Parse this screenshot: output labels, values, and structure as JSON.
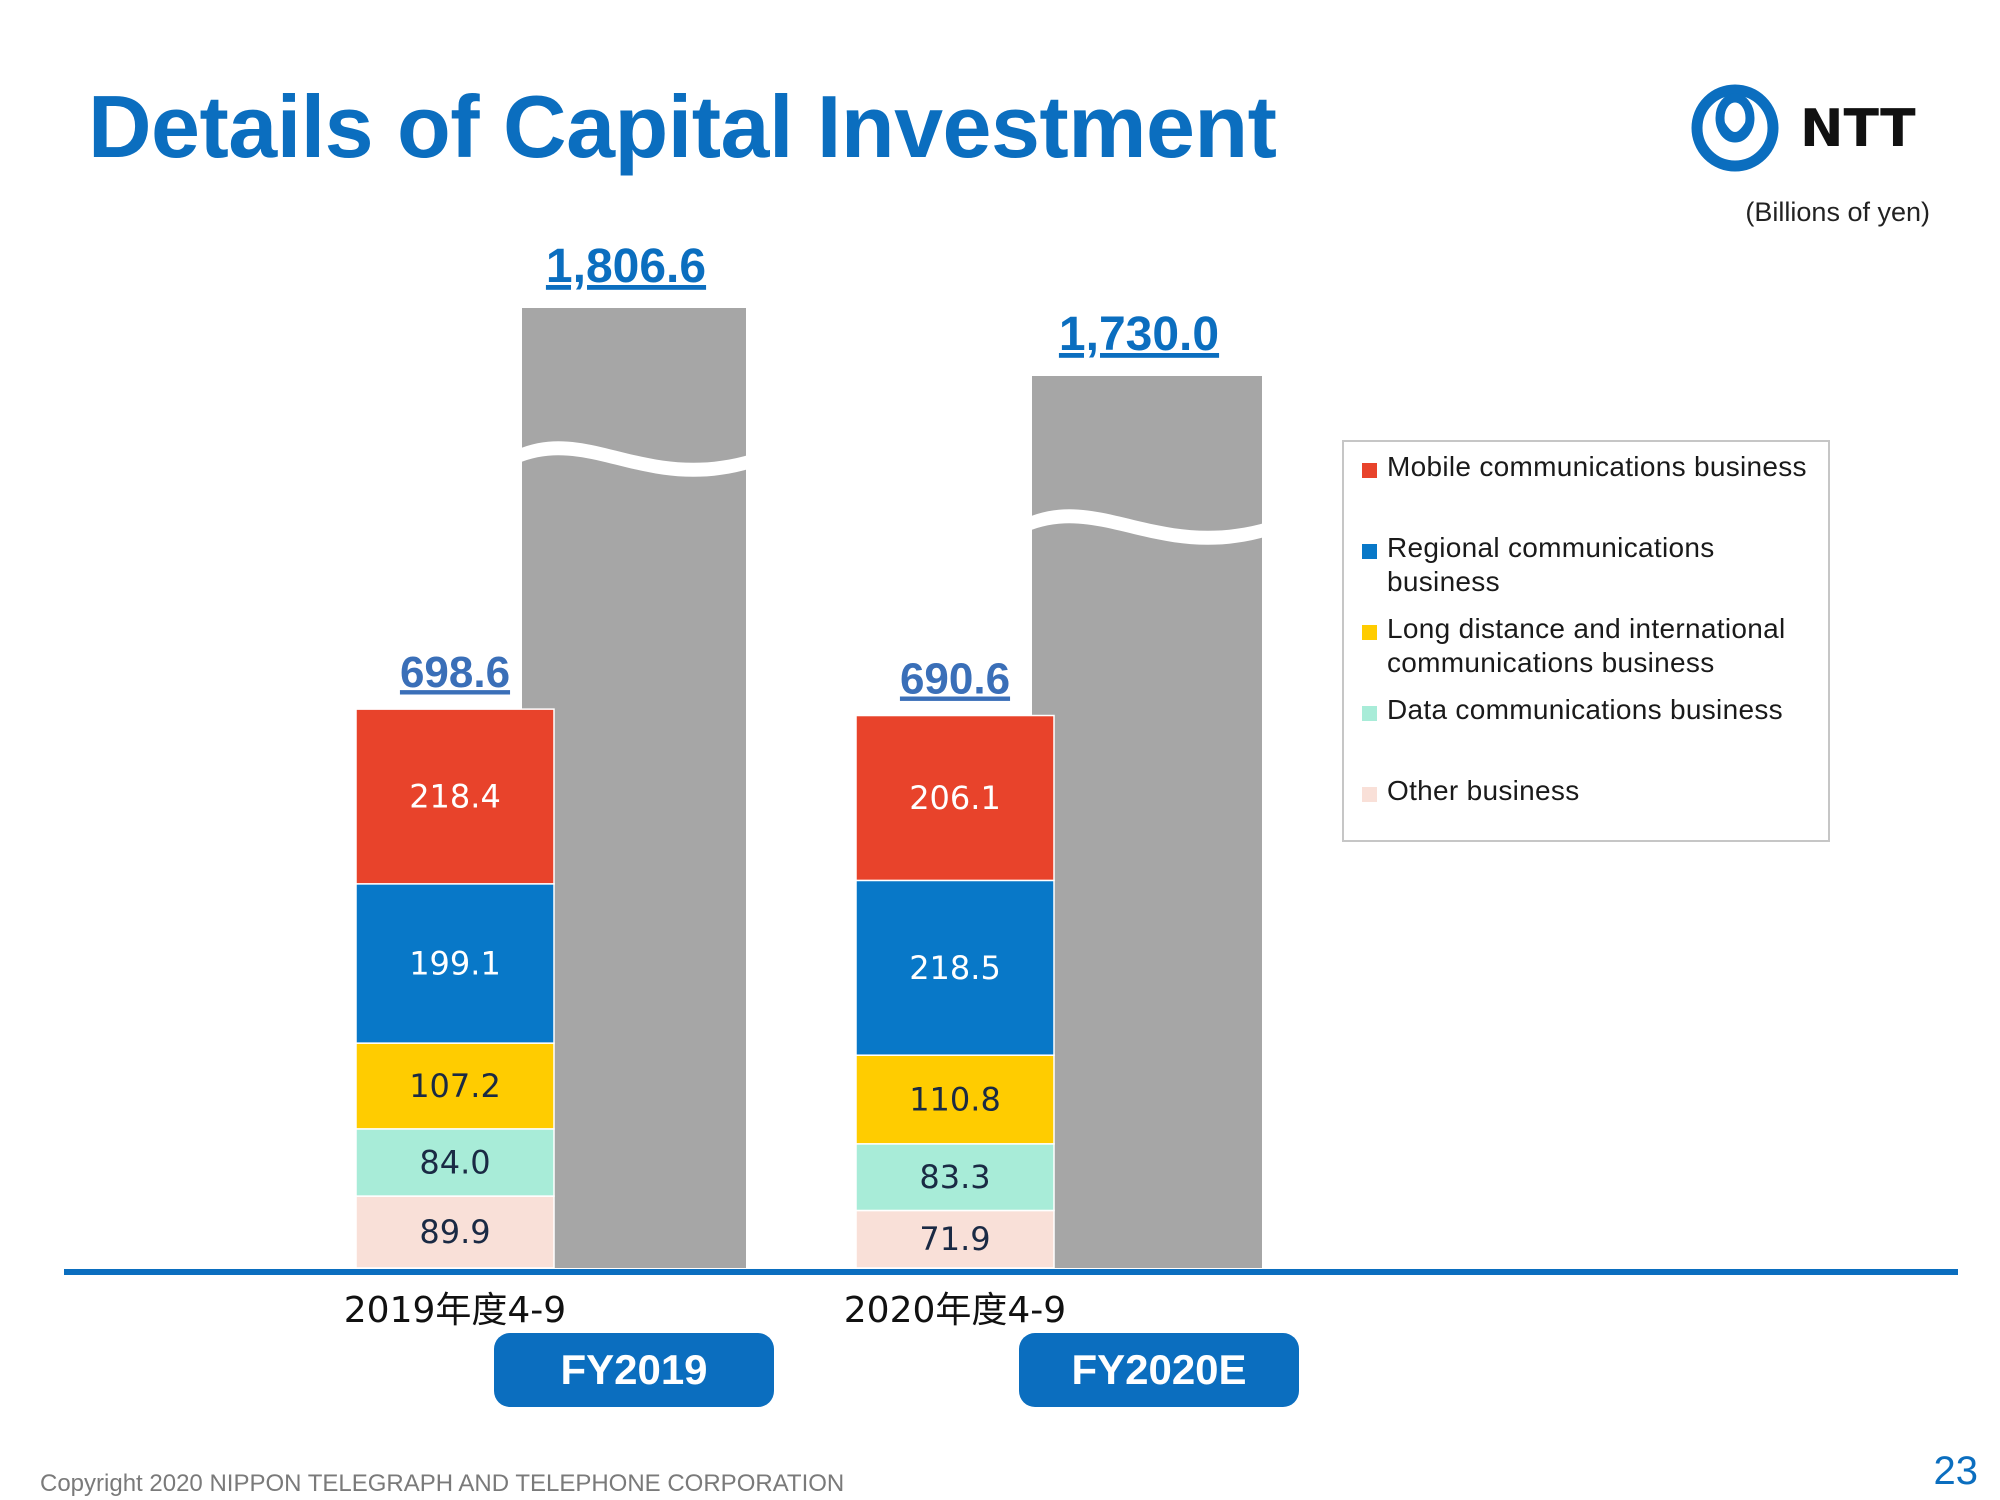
{
  "title": "Details of Capital Investment",
  "logo_text": "NTT",
  "unit_label": "(Billions of yen)",
  "colors": {
    "brand_blue": "#0b6ebf",
    "mobile": "#e8432b",
    "regional": "#0878c8",
    "long_distance": "#ffcc00",
    "data_comm": "#a8ecd8",
    "other": "#f9e0d8",
    "annual_bar": "#a6a6a6"
  },
  "chart_data": {
    "type": "bar",
    "stacked": true,
    "unit": "(Billions of yen)",
    "categories": [
      "2019年度4-9",
      "2020年度4-9"
    ],
    "period_labels": [
      "FY2019",
      "FY2020E"
    ],
    "series": [
      {
        "name": "Other business",
        "color": "#f9e0d8",
        "values": [
          89.9,
          71.9
        ]
      },
      {
        "name": "Data communications business",
        "color": "#a8ecd8",
        "values": [
          84.0,
          83.3
        ]
      },
      {
        "name": "Long distance and international communications business",
        "color": "#ffcc00",
        "values": [
          107.2,
          110.8
        ]
      },
      {
        "name": "Regional communications business",
        "color": "#0878c8",
        "values": [
          199.1,
          218.5
        ]
      },
      {
        "name": "Mobile communications business",
        "color": "#e8432b",
        "values": [
          218.4,
          206.1
        ]
      }
    ],
    "half_year_totals": [
      "698.6",
      "690.6"
    ],
    "full_year_totals": [
      "1,806.6",
      "1,730.0"
    ],
    "full_year_values": [
      1806.6,
      1730.0
    ],
    "axis_break": true,
    "legend_position": "right",
    "grid": false
  },
  "legend": {
    "items": [
      {
        "label": "Mobile communications business",
        "color": "#e8432b"
      },
      {
        "label": "Regional communications business",
        "color": "#0878c8"
      },
      {
        "label": "Long distance and international communications business",
        "color": "#ffcc00"
      },
      {
        "label": "Data communications business",
        "color": "#a8ecd8"
      },
      {
        "label": "Other business",
        "color": "#f9e0d8"
      }
    ]
  },
  "periods": [
    "FY2019",
    "FY2020E"
  ],
  "footer": "Copyright 2020 NIPPON TELEGRAPH AND TELEPHONE CORPORATION",
  "page_number": "23"
}
